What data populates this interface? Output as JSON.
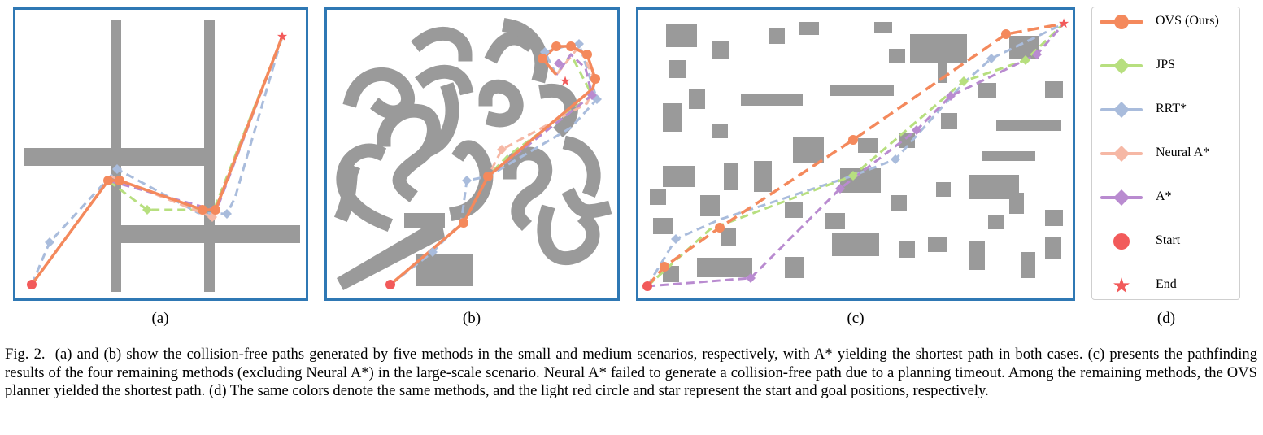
{
  "figure_label": "Fig. 2.",
  "caption": "(a) and (b) show the collision-free paths generated by five methods in the small and medium scenarios, respectively, with A* yielding the shortest path in both cases. (c) presents the pathfinding results of the four remaining methods (excluding Neural A*) in the large-scale scenario. Neural A* failed to generate a collision-free path due to a planning timeout. Among the remaining methods, the OVS planner yielded the shortest path. (d) The same colors denote the same methods, and the light red circle and star represent the start and goal positions, respectively.",
  "panels": [
    {
      "id": "a",
      "label": "(a)"
    },
    {
      "id": "b",
      "label": "(b)"
    },
    {
      "id": "c",
      "label": "(c)"
    },
    {
      "id": "d",
      "label": "(d)"
    }
  ],
  "legend": [
    {
      "label": "OVS (Ours)",
      "marker": "circle",
      "color": "#f4895c"
    },
    {
      "label": "JPS",
      "marker": "diamond",
      "color": "#b7df7f"
    },
    {
      "label": "RRT*",
      "marker": "diamond",
      "color": "#a9bcdc"
    },
    {
      "label": "Neural A*",
      "marker": "diamond",
      "color": "#f6b8a5"
    },
    {
      "label": "A*",
      "marker": "diamond",
      "color": "#b98bd0"
    },
    {
      "label": "Start",
      "marker": "circle",
      "color": "#f25a5a"
    },
    {
      "label": "End",
      "marker": "star",
      "color": "#f25a5a"
    }
  ],
  "colors": {
    "frame": "#2f78b4",
    "obstacle": "#9a9a9a",
    "ovs": "#f4895c",
    "jps": "#b7df7f",
    "rrt": "#a9bcdc",
    "neural_astar": "#f6b8a5",
    "astar": "#b98bd0",
    "start_end": "#f25a5a"
  }
}
